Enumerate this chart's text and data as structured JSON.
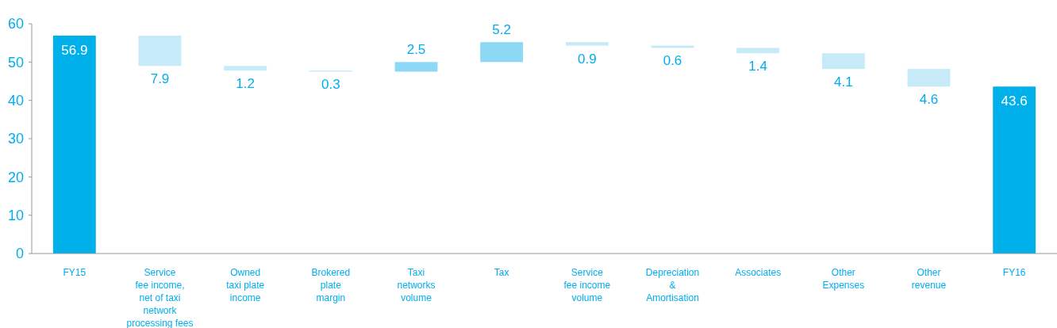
{
  "chart_data": {
    "type": "bar",
    "categories": [
      "FY15",
      "Service\nfee income,\nnet of taxi\nnetwork\nprocessing fees",
      "Owned\ntaxi plate\nincome",
      "Brokered\nplate\nmargin",
      "Taxi\nnetworks\nvolume",
      "Tax",
      "Service\nfee income\nvolume",
      "Depreciation\n&\nAmortisation",
      "Associates",
      "Other\nExpenses",
      "Other\nrevenue",
      "FY16"
    ],
    "base": [
      0,
      56.9,
      49.0,
      47.8,
      47.5,
      50.0,
      55.2,
      54.3,
      53.7,
      52.3,
      48.2,
      0
    ],
    "values": [
      56.9,
      -7.9,
      -1.2,
      -0.3,
      2.5,
      5.2,
      -0.9,
      -0.6,
      -1.4,
      -4.1,
      -4.6,
      43.6
    ],
    "value_labels": [
      "56.9",
      "7.9",
      "1.2",
      "0.3",
      "2.5",
      "5.2",
      "0.9",
      "0.6",
      "1.4",
      "4.1",
      "4.6",
      "43.6"
    ],
    "colors": [
      "#00b0ea",
      "#c7eaf9",
      "#c7eaf9",
      "#c7eaf9",
      "#8dd8f5",
      "#8dd8f5",
      "#c7eaf9",
      "#c7eaf9",
      "#c7eaf9",
      "#c7eaf9",
      "#c7eaf9",
      "#00b0ea"
    ],
    "ylim": [
      0,
      60
    ],
    "yticks": [
      0,
      10,
      20,
      30,
      40,
      50,
      60
    ],
    "grid": false
  }
}
